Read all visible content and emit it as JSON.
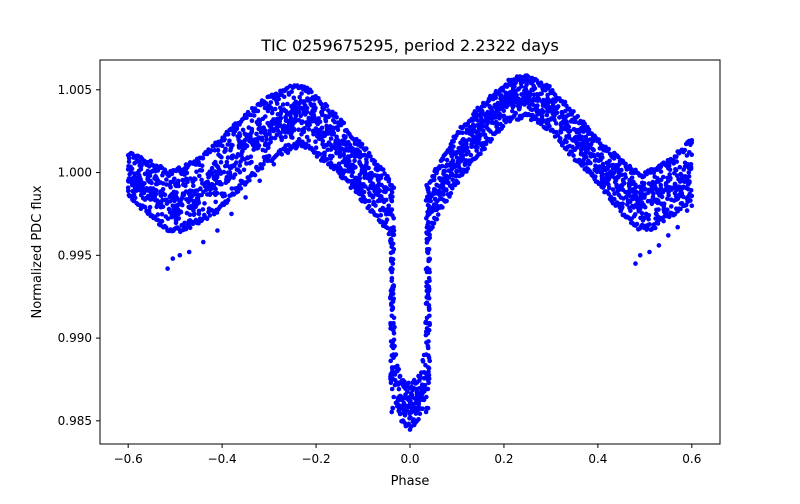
{
  "chart_data": {
    "type": "scatter",
    "title": "TIC 0259675295, period 2.2322 days",
    "xlabel": "Phase",
    "ylabel": "Normalized PDC flux",
    "xlim": [
      -0.66,
      0.66
    ],
    "ylim": [
      0.9836,
      1.0068
    ],
    "x_ticks": [
      -0.6,
      -0.4,
      -0.2,
      0.0,
      0.2,
      0.4,
      0.6
    ],
    "x_tick_labels": [
      "−0.6",
      "−0.4",
      "−0.2",
      "0.0",
      "0.2",
      "0.4",
      "0.6"
    ],
    "y_ticks": [
      0.985,
      0.99,
      0.995,
      1.0,
      1.005
    ],
    "y_tick_labels": [
      "0.985",
      "0.990",
      "0.995",
      "1.000",
      "1.005"
    ],
    "grid": false,
    "legend": "none",
    "series": [
      {
        "color": "#0000ff",
        "marker": "circle",
        "envelope_x": [
          -0.6,
          -0.55,
          -0.52,
          -0.5,
          -0.45,
          -0.4,
          -0.35,
          -0.3,
          -0.25,
          -0.22,
          -0.2,
          -0.15,
          -0.1,
          -0.06,
          -0.045,
          -0.038,
          -0.032,
          -0.02,
          0.0,
          0.02,
          0.032,
          0.038,
          0.045,
          0.06,
          0.1,
          0.15,
          0.2,
          0.22,
          0.25,
          0.3,
          0.35,
          0.4,
          0.45,
          0.48,
          0.5,
          0.52,
          0.55,
          0.6
        ],
        "envelope_upper": [
          1.0013,
          1.0007,
          1.0002,
          1.0002,
          1.0009,
          1.0022,
          1.0036,
          1.0047,
          1.0053,
          1.0052,
          1.0047,
          1.0033,
          1.0017,
          1.0003,
          0.9998,
          0.9992,
          0.9893,
          0.9878,
          0.9872,
          0.9878,
          0.9893,
          0.9992,
          0.9998,
          1.0006,
          1.0025,
          1.0041,
          1.0054,
          1.0058,
          1.0059,
          1.0052,
          1.0037,
          1.0021,
          1.0008,
          1.0002,
          1.0001,
          1.0003,
          1.0008,
          1.0021
        ],
        "envelope_lower": [
          0.9985,
          0.9972,
          0.9965,
          0.9963,
          0.9968,
          0.9978,
          0.9993,
          1.0006,
          1.0014,
          1.0015,
          1.001,
          0.9998,
          0.9982,
          0.9968,
          0.9962,
          0.995,
          0.9862,
          0.985,
          0.9844,
          0.985,
          0.9862,
          0.995,
          0.9963,
          0.9974,
          0.9993,
          1.0011,
          1.0028,
          1.0032,
          1.0032,
          1.0025,
          1.0007,
          0.9992,
          0.9975,
          0.9966,
          0.9964,
          0.9966,
          0.9972,
          0.9982
        ],
        "outlier_tail_left": [
          [
            -0.516,
            0.9942
          ],
          [
            -0.505,
            0.9948
          ],
          [
            -0.49,
            0.995
          ],
          [
            -0.47,
            0.9952
          ],
          [
            -0.44,
            0.9958
          ],
          [
            -0.41,
            0.9965
          ],
          [
            -0.38,
            0.9975
          ],
          [
            -0.35,
            0.9985
          ],
          [
            -0.32,
            0.9995
          ],
          [
            -0.29,
            1.0005
          ],
          [
            -0.26,
            1.0012
          ],
          [
            -0.23,
            1.0016
          ],
          [
            -0.2,
            1.0015
          ],
          [
            -0.17,
            1.001
          ]
        ],
        "outlier_tail_right": [
          [
            0.48,
            0.9945
          ],
          [
            0.49,
            0.995
          ],
          [
            0.51,
            0.9952
          ],
          [
            0.53,
            0.9956
          ],
          [
            0.55,
            0.9962
          ],
          [
            0.57,
            0.9967
          ],
          [
            0.59,
            0.9977
          ],
          [
            0.6,
            0.998
          ]
        ]
      }
    ]
  }
}
